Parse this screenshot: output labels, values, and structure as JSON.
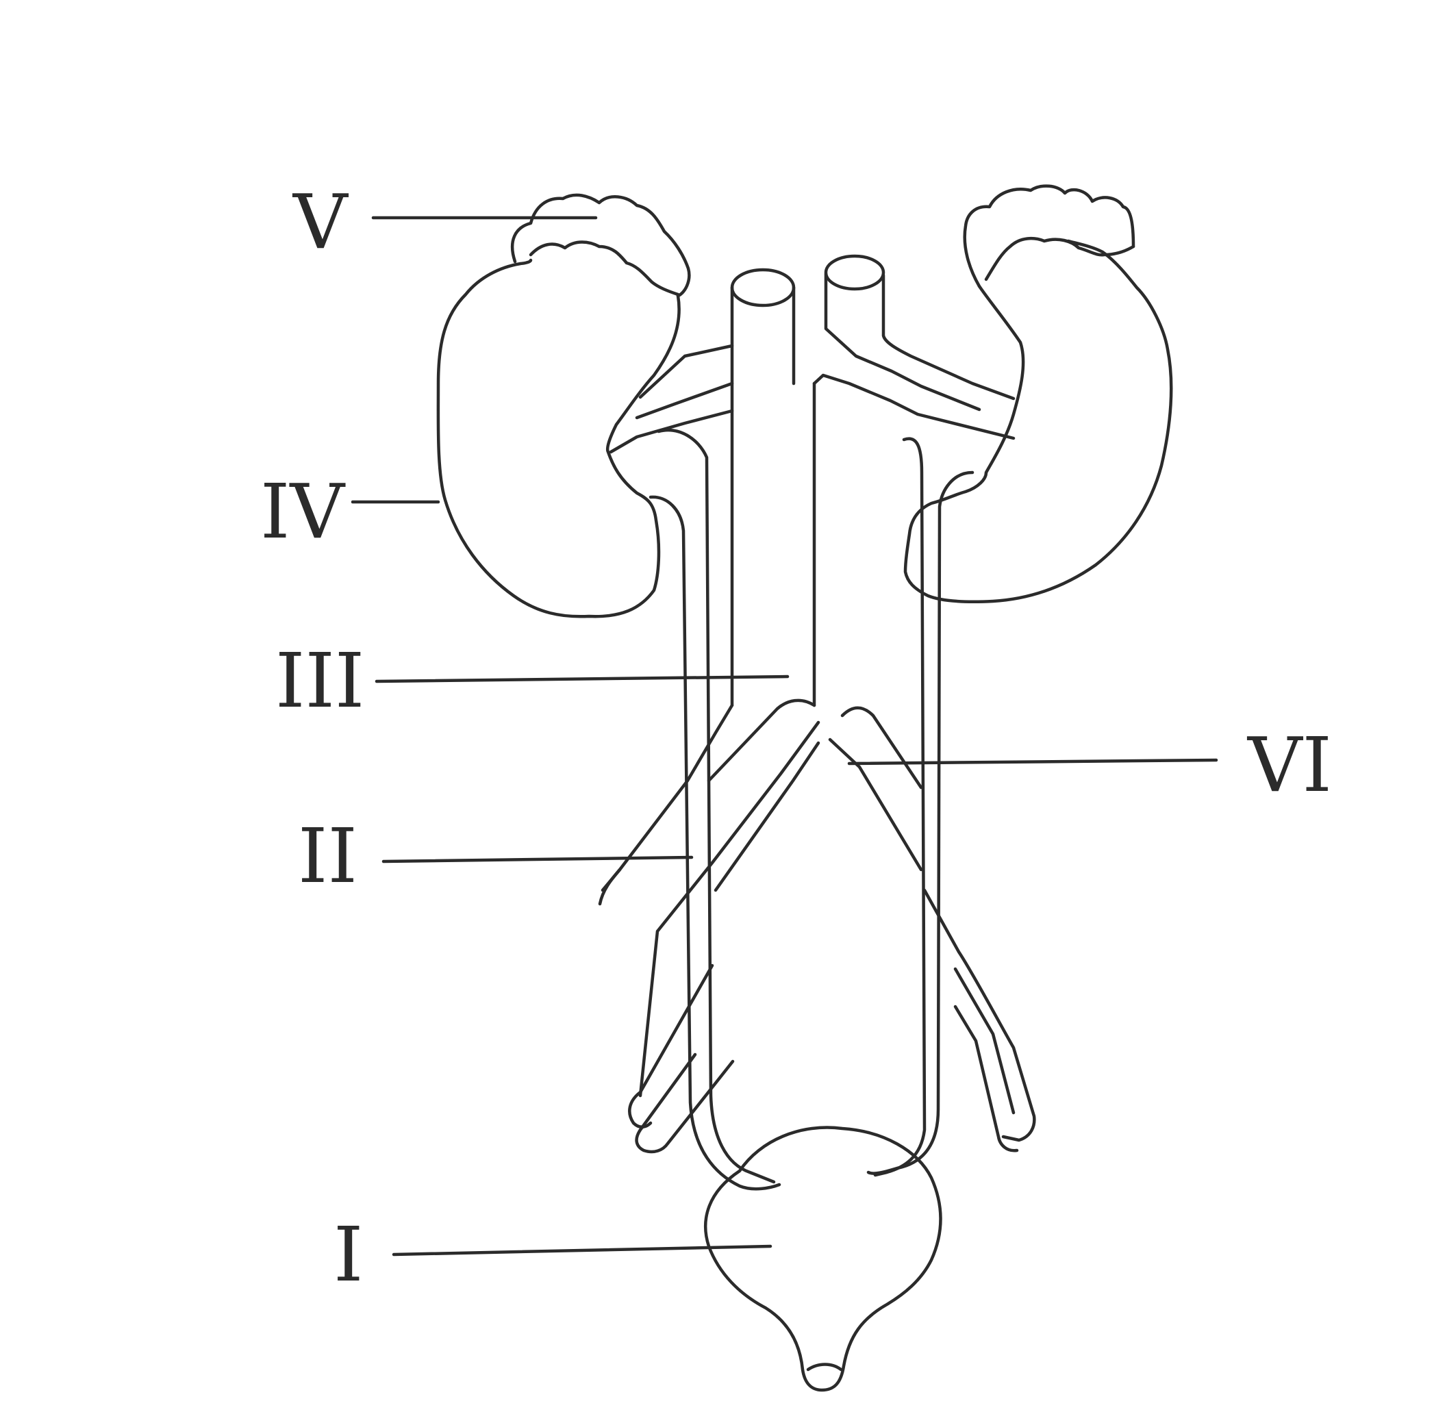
{
  "labels": {
    "I": "I",
    "II": "II",
    "III": "III",
    "IV": "IV",
    "V": "V",
    "VI": "VI"
  },
  "colors": {
    "ink": "#2b2b2b",
    "background": "#ffffff"
  }
}
